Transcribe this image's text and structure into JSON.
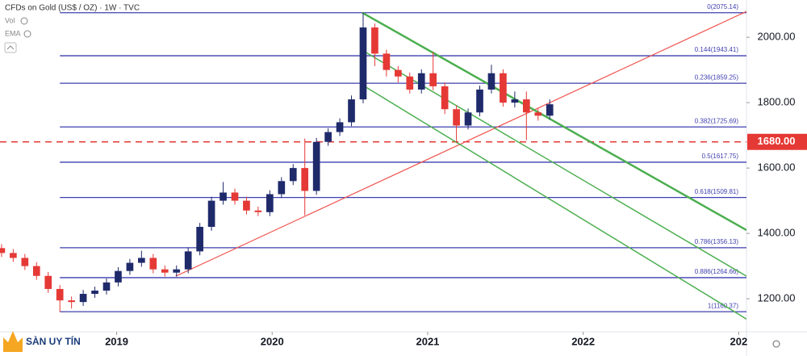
{
  "chart_data": {
    "type": "candlestick",
    "title": "CFDs on Gold (US$ / OZ) · 1W · TVC",
    "indicators": [
      "Vol",
      "EMA"
    ],
    "up_color": "#1f2a6b",
    "down_color": "#e53935",
    "x": [
      2018.26,
      2018.335,
      2018.41,
      2018.485,
      2018.56,
      2018.635,
      2018.71,
      2018.785,
      2018.86,
      2018.935,
      2019.01,
      2019.085,
      2019.16,
      2019.235,
      2019.31,
      2019.385,
      2019.46,
      2019.535,
      2019.61,
      2019.685,
      2019.76,
      2019.835,
      2019.91,
      2019.985,
      2020.06,
      2020.135,
      2020.21,
      2020.285,
      2020.36,
      2020.435,
      2020.51,
      2020.585,
      2020.66,
      2020.735,
      2020.81,
      2020.885,
      2020.96,
      2021.035,
      2021.11,
      2021.185,
      2021.26,
      2021.335,
      2021.41,
      2021.485,
      2021.56,
      2021.635,
      2021.71,
      2021.785
    ],
    "open": [
      1355,
      1340,
      1325,
      1300,
      1270,
      1230,
      1195,
      1190,
      1215,
      1225,
      1250,
      1285,
      1310,
      1325,
      1290,
      1280,
      1290,
      1345,
      1420,
      1500,
      1525,
      1500,
      1470,
      1465,
      1520,
      1560,
      1600,
      1530,
      1680,
      1710,
      1740,
      1810,
      2030,
      1950,
      1900,
      1880,
      1840,
      1890,
      1850,
      1780,
      1730,
      1770,
      1840,
      1890,
      1800,
      1810,
      1770,
      1760
    ],
    "high": [
      1367,
      1352,
      1337,
      1312,
      1282,
      1242,
      1207,
      1227,
      1237,
      1262,
      1297,
      1322,
      1347,
      1337,
      1302,
      1302,
      1357,
      1432,
      1512,
      1557,
      1537,
      1512,
      1482,
      1532,
      1572,
      1612,
      1690,
      1692,
      1722,
      1752,
      1822,
      2075,
      2042,
      1962,
      1912,
      1892,
      1902,
      1955,
      1862,
      1792,
      1782,
      1852,
      1916,
      1902,
      1834,
      1834,
      1782,
      1810
    ],
    "low": [
      1328,
      1313,
      1288,
      1258,
      1218,
      1160,
      1170,
      1178,
      1203,
      1213,
      1238,
      1273,
      1298,
      1278,
      1268,
      1268,
      1278,
      1333,
      1408,
      1488,
      1488,
      1458,
      1453,
      1453,
      1508,
      1548,
      1455,
      1518,
      1668,
      1698,
      1728,
      1798,
      1912,
      1880,
      1862,
      1828,
      1828,
      1838,
      1765,
      1677,
      1718,
      1758,
      1828,
      1788,
      1785,
      1685,
      1745,
      1748
    ],
    "close": [
      1340,
      1325,
      1300,
      1270,
      1230,
      1195,
      1190,
      1215,
      1225,
      1250,
      1285,
      1310,
      1325,
      1290,
      1280,
      1290,
      1345,
      1420,
      1500,
      1525,
      1500,
      1470,
      1465,
      1520,
      1560,
      1600,
      1530,
      1680,
      1710,
      1740,
      1810,
      2030,
      1950,
      1900,
      1880,
      1840,
      1890,
      1850,
      1780,
      1730,
      1770,
      1840,
      1890,
      1800,
      1810,
      1770,
      1760,
      1795
    ],
    "xlim": [
      2018.25,
      2023.05
    ],
    "ylim": [
      1099,
      2114
    ],
    "xticks": [
      2019,
      2020,
      2021,
      2022,
      {
        "value": 2023,
        "label": "202"
      }
    ],
    "yticks": [
      {
        "value": 2000,
        "label": "2000.00"
      },
      {
        "value": 1800,
        "label": "1800.00"
      },
      {
        "value": 1600,
        "label": "1600.00"
      },
      {
        "value": 1400,
        "label": "1400.00"
      },
      {
        "value": 1200,
        "label": "1200.00"
      }
    ],
    "fib_color": "#3f3fb0",
    "fib_levels": [
      {
        "value": 2075.14,
        "label": "0(2075.14)"
      },
      {
        "value": 1943.41,
        "label": "0.144(1943.41)"
      },
      {
        "value": 1859.25,
        "label": "0.236(1859.25)"
      },
      {
        "value": 1725.69,
        "label": "0.382(1725.69)"
      },
      {
        "value": 1617.75,
        "label": "0.5(1617.75)"
      },
      {
        "value": 1509.81,
        "label": "0.618(1509.81)"
      },
      {
        "value": 1356.13,
        "label": "0.786(1356.13)"
      },
      {
        "value": 1264.66,
        "label": "0.886(1264.66)"
      },
      {
        "value": 1160.37,
        "label": "1(1160.37)"
      }
    ],
    "horizontal_line": {
      "value": 1680,
      "label": "1680.00",
      "color": "#e53935"
    },
    "trendlines": [
      {
        "color": "#f0544f",
        "width": 1.2,
        "x": [
          2019.38,
          2023.05
        ],
        "y": [
          1269,
          2079
        ]
      },
      {
        "color": "#4caf50",
        "width": 2.5,
        "x": [
          2020.58,
          2023.05
        ],
        "y": [
          2075,
          1410
        ]
      },
      {
        "color": "#4caf50",
        "width": 1.5,
        "x": [
          2020.58,
          2023.05
        ],
        "y": [
          1960,
          1269
        ]
      },
      {
        "color": "#4caf50",
        "width": 1.5,
        "x": [
          2020.58,
          2023.05
        ],
        "y": [
          1854,
          1138
        ]
      }
    ]
  },
  "watermark": "SÀN UY TÍN"
}
